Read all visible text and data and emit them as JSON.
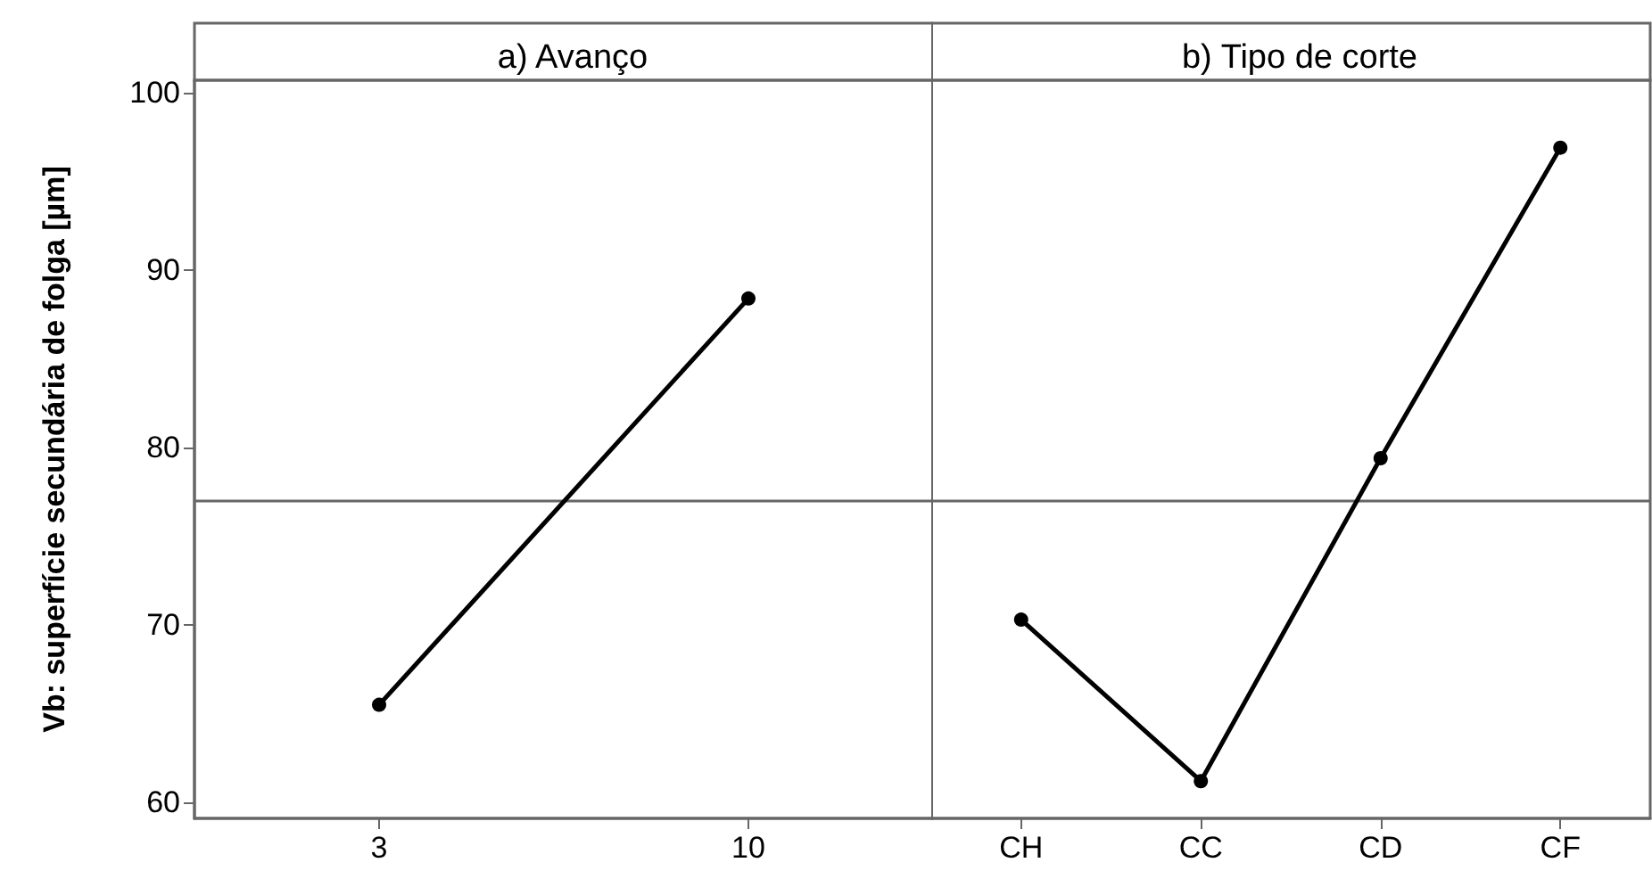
{
  "chart_data": [
    {
      "type": "line",
      "title": "a) Avanço",
      "ylabel": "Vb: superfície secundária de folga [µm]",
      "categories": [
        "3",
        "10"
      ],
      "values": [
        65.5,
        88.4
      ],
      "color": "#000000",
      "marker": "circle",
      "ylim": [
        59.1,
        100.7
      ],
      "yticks": [
        60,
        70,
        80,
        90,
        100
      ],
      "ref_lines": [
        {
          "axis": "y",
          "value": 77.0,
          "label": null,
          "color": "#666666"
        }
      ]
    },
    {
      "type": "line",
      "title": "b) Tipo de corte",
      "categories": [
        "CH",
        "CC",
        "CD",
        "CF"
      ],
      "values": [
        70.3,
        61.2,
        79.4,
        96.9
      ],
      "color": "#000000",
      "marker": "circle",
      "ylim": [
        59.1,
        100.7
      ],
      "yticks": [
        60,
        70,
        80,
        90,
        100
      ],
      "tick_labels": "x",
      "ref_lines": [
        {
          "axis": "y",
          "value": 77.0,
          "label": null,
          "color": "#666666"
        }
      ]
    }
  ]
}
